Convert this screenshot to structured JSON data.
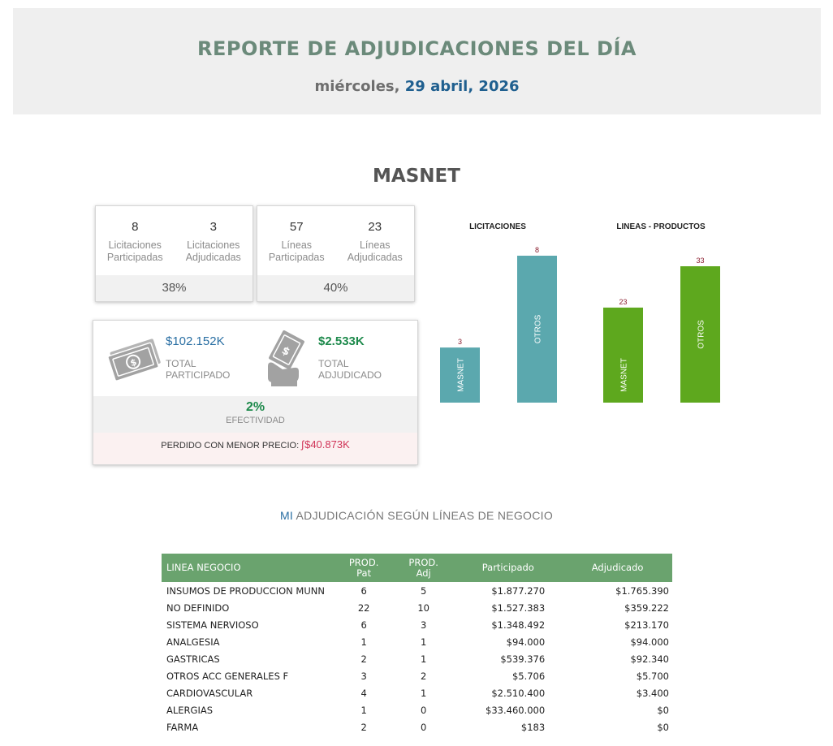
{
  "header": {
    "title": "REPORTE DE ADJUDICACIONES DEL DÍA",
    "weekday": "miércoles,",
    "date": "29 abril, 2026"
  },
  "company": "MASNET",
  "licitaciones_card": {
    "participadas_num": "8",
    "participadas_label": "Licitaciones Participadas",
    "adjudicadas_num": "3",
    "adjudicadas_label": "Licitaciones Adjudicadas",
    "percent": "38%"
  },
  "lineas_card": {
    "participadas_num": "57",
    "participadas_label": "Líneas Participadas",
    "adjudicadas_num": "23",
    "adjudicadas_label": "Líneas Adjudicadas",
    "percent": "40%"
  },
  "money_card": {
    "participado_amount": "$102.152K",
    "participado_label": "TOTAL PARTICIPADO",
    "adjudicado_amount": "$2.533K",
    "adjudicado_label": "TOTAL ADJUDICADO",
    "efectividad_value": "2%",
    "efectividad_label": "EFECTIVIDAD",
    "lost_label": "PERDIDO CON MENOR PRECIO:",
    "lost_value": "$40.873K"
  },
  "chart_data": [
    {
      "type": "bar",
      "title": "LICITACIONES",
      "categories": [
        "MASNET",
        "OTROS"
      ],
      "values": [
        3,
        8
      ],
      "colors": [
        "#5ba8ae",
        "#5ba8ae"
      ]
    },
    {
      "type": "bar",
      "title": "LINEAS - PRODUCTOS",
      "categories": [
        "MASNET",
        "OTROS"
      ],
      "values": [
        23,
        33
      ],
      "colors": [
        "#5ea81e",
        "#5ea81e"
      ]
    }
  ],
  "section": {
    "mi": "MI",
    "rest": "ADJUDICACIÓN SEGÚN LÍNEAS DE NEGOCIO"
  },
  "table": {
    "columns": [
      "LINEA NEGOCIO",
      "PROD. Pat",
      "PROD. Adj",
      "Participado",
      "Adjudicado"
    ],
    "rows": [
      [
        "INSUMOS DE PRODUCCION MUNN",
        "6",
        "5",
        "$1.877.270",
        "$1.765.390"
      ],
      [
        "NO DEFINIDO",
        "22",
        "10",
        "$1.527.383",
        "$359.222"
      ],
      [
        "SISTEMA NERVIOSO",
        "6",
        "3",
        "$1.348.492",
        "$213.170"
      ],
      [
        "ANALGESIA",
        "1",
        "1",
        "$94.000",
        "$94.000"
      ],
      [
        "GASTRICAS",
        "2",
        "1",
        "$539.376",
        "$92.340"
      ],
      [
        "OTROS ACC GENERALES F",
        "3",
        "2",
        "$5.706",
        "$5.700"
      ],
      [
        "CARDIOVASCULAR",
        "4",
        "1",
        "$2.510.400",
        "$3.400"
      ],
      [
        "ALERGIAS",
        "1",
        "0",
        "$33.460.000",
        "$0"
      ],
      [
        "FARMA",
        "2",
        "0",
        "$183",
        "$0"
      ]
    ]
  }
}
